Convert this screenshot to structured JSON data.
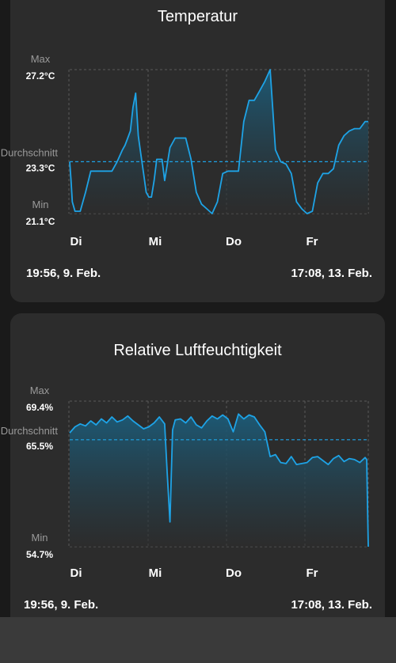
{
  "charts": [
    {
      "title": "Temperatur",
      "max_label": "Max",
      "avg_label": "Durchschnitt",
      "min_label": "Min",
      "max_value": "27.2°C",
      "avg_value": "23.3°C",
      "min_value": "21.1°C",
      "start": "19:56,  9. Feb.",
      "end": "17:08,  13. Feb."
    },
    {
      "title": "Relative Luftfeuchtigkeit",
      "max_label": "Max",
      "avg_label": "Durchschnitt",
      "min_label": "Min",
      "max_value": "69.4%",
      "avg_value": "65.5%",
      "min_value": "54.7%",
      "start": "19:56,  9. Feb.",
      "end": "17:08,  13. Feb."
    }
  ],
  "colors": {
    "line": "#1ea3e6",
    "card": "#2c2c2c",
    "grid": "#5a5a5a"
  },
  "chart_data": [
    {
      "type": "area",
      "title": "Temperatur",
      "x_unit": "hours since 19:56, 9. Feb.",
      "x_categories": [
        "Di",
        "Mi",
        "Do",
        "Fr"
      ],
      "ylim": [
        21.1,
        27.2
      ],
      "max": 27.2,
      "avg": 23.3,
      "min": 21.1,
      "grid": true,
      "x": [
        0,
        0.5,
        1,
        2,
        4,
        6,
        8,
        10,
        14,
        16,
        18,
        20,
        21,
        22,
        23,
        24,
        25,
        26,
        27,
        28,
        29,
        30,
        31,
        32,
        33,
        34,
        35,
        36,
        38,
        40,
        42,
        44,
        46,
        48,
        50,
        52,
        54,
        56,
        58,
        60,
        62,
        64,
        66,
        68,
        70,
        72,
        74,
        76,
        78,
        80,
        82,
        84,
        86,
        88,
        90,
        92,
        94,
        96,
        98,
        100,
        102,
        104,
        106,
        108,
        110,
        112,
        113.2
      ],
      "values": [
        23.3,
        22.5,
        21.6,
        21.2,
        21.2,
        22.0,
        22.9,
        22.9,
        22.9,
        22.9,
        23.3,
        23.8,
        24.0,
        24.3,
        24.6,
        25.6,
        26.2,
        24.4,
        23.6,
        22.8,
        22.0,
        21.8,
        21.8,
        22.5,
        23.4,
        23.4,
        23.4,
        22.5,
        23.9,
        24.3,
        24.3,
        24.3,
        23.4,
        22.0,
        21.5,
        21.3,
        21.1,
        21.6,
        22.8,
        22.9,
        22.9,
        22.9,
        25.0,
        25.9,
        25.9,
        26.3,
        26.7,
        27.2,
        23.8,
        23.3,
        23.2,
        22.8,
        21.6,
        21.3,
        21.1,
        21.2,
        22.4,
        22.8,
        22.8,
        23.0,
        24.0,
        24.4,
        24.6,
        24.7,
        24.7,
        25.0,
        25.0
      ]
    },
    {
      "type": "area",
      "title": "Relative Luftfeuchtigkeit",
      "x_unit": "hours since 19:56, 9. Feb.",
      "x_categories": [
        "Di",
        "Mi",
        "Do",
        "Fr"
      ],
      "ylim": [
        54.7,
        69.4
      ],
      "max": 69.4,
      "avg": 65.5,
      "min": 54.7,
      "grid": true,
      "x": [
        0,
        2,
        4,
        6,
        8,
        10,
        12,
        14,
        16,
        18,
        20,
        22,
        24,
        26,
        28,
        30,
        32,
        34,
        36,
        37,
        38,
        39,
        40,
        42,
        44,
        46,
        48,
        50,
        52,
        54,
        56,
        58,
        60,
        62,
        64,
        66,
        68,
        70,
        72,
        74,
        76,
        78,
        80,
        82,
        84,
        86,
        88,
        90,
        92,
        94,
        96,
        98,
        100,
        102,
        104,
        106,
        108,
        110,
        112,
        112.6,
        113.2
      ],
      "values": [
        66.2,
        66.8,
        67.1,
        66.9,
        67.4,
        67.0,
        67.6,
        67.2,
        67.8,
        67.3,
        67.5,
        67.9,
        67.4,
        67.0,
        66.6,
        66.8,
        67.2,
        67.8,
        67.1,
        62.0,
        57.2,
        66.5,
        67.5,
        67.6,
        67.2,
        67.8,
        67.0,
        66.7,
        67.4,
        67.9,
        67.6,
        68.0,
        67.6,
        66.3,
        68.1,
        67.6,
        68.0,
        67.8,
        67.0,
        66.3,
        63.8,
        64.0,
        63.2,
        63.1,
        63.8,
        63.0,
        63.1,
        63.2,
        63.7,
        63.8,
        63.4,
        63.0,
        63.6,
        63.9,
        63.3,
        63.6,
        63.5,
        63.2,
        63.7,
        63.5,
        54.7
      ]
    }
  ]
}
